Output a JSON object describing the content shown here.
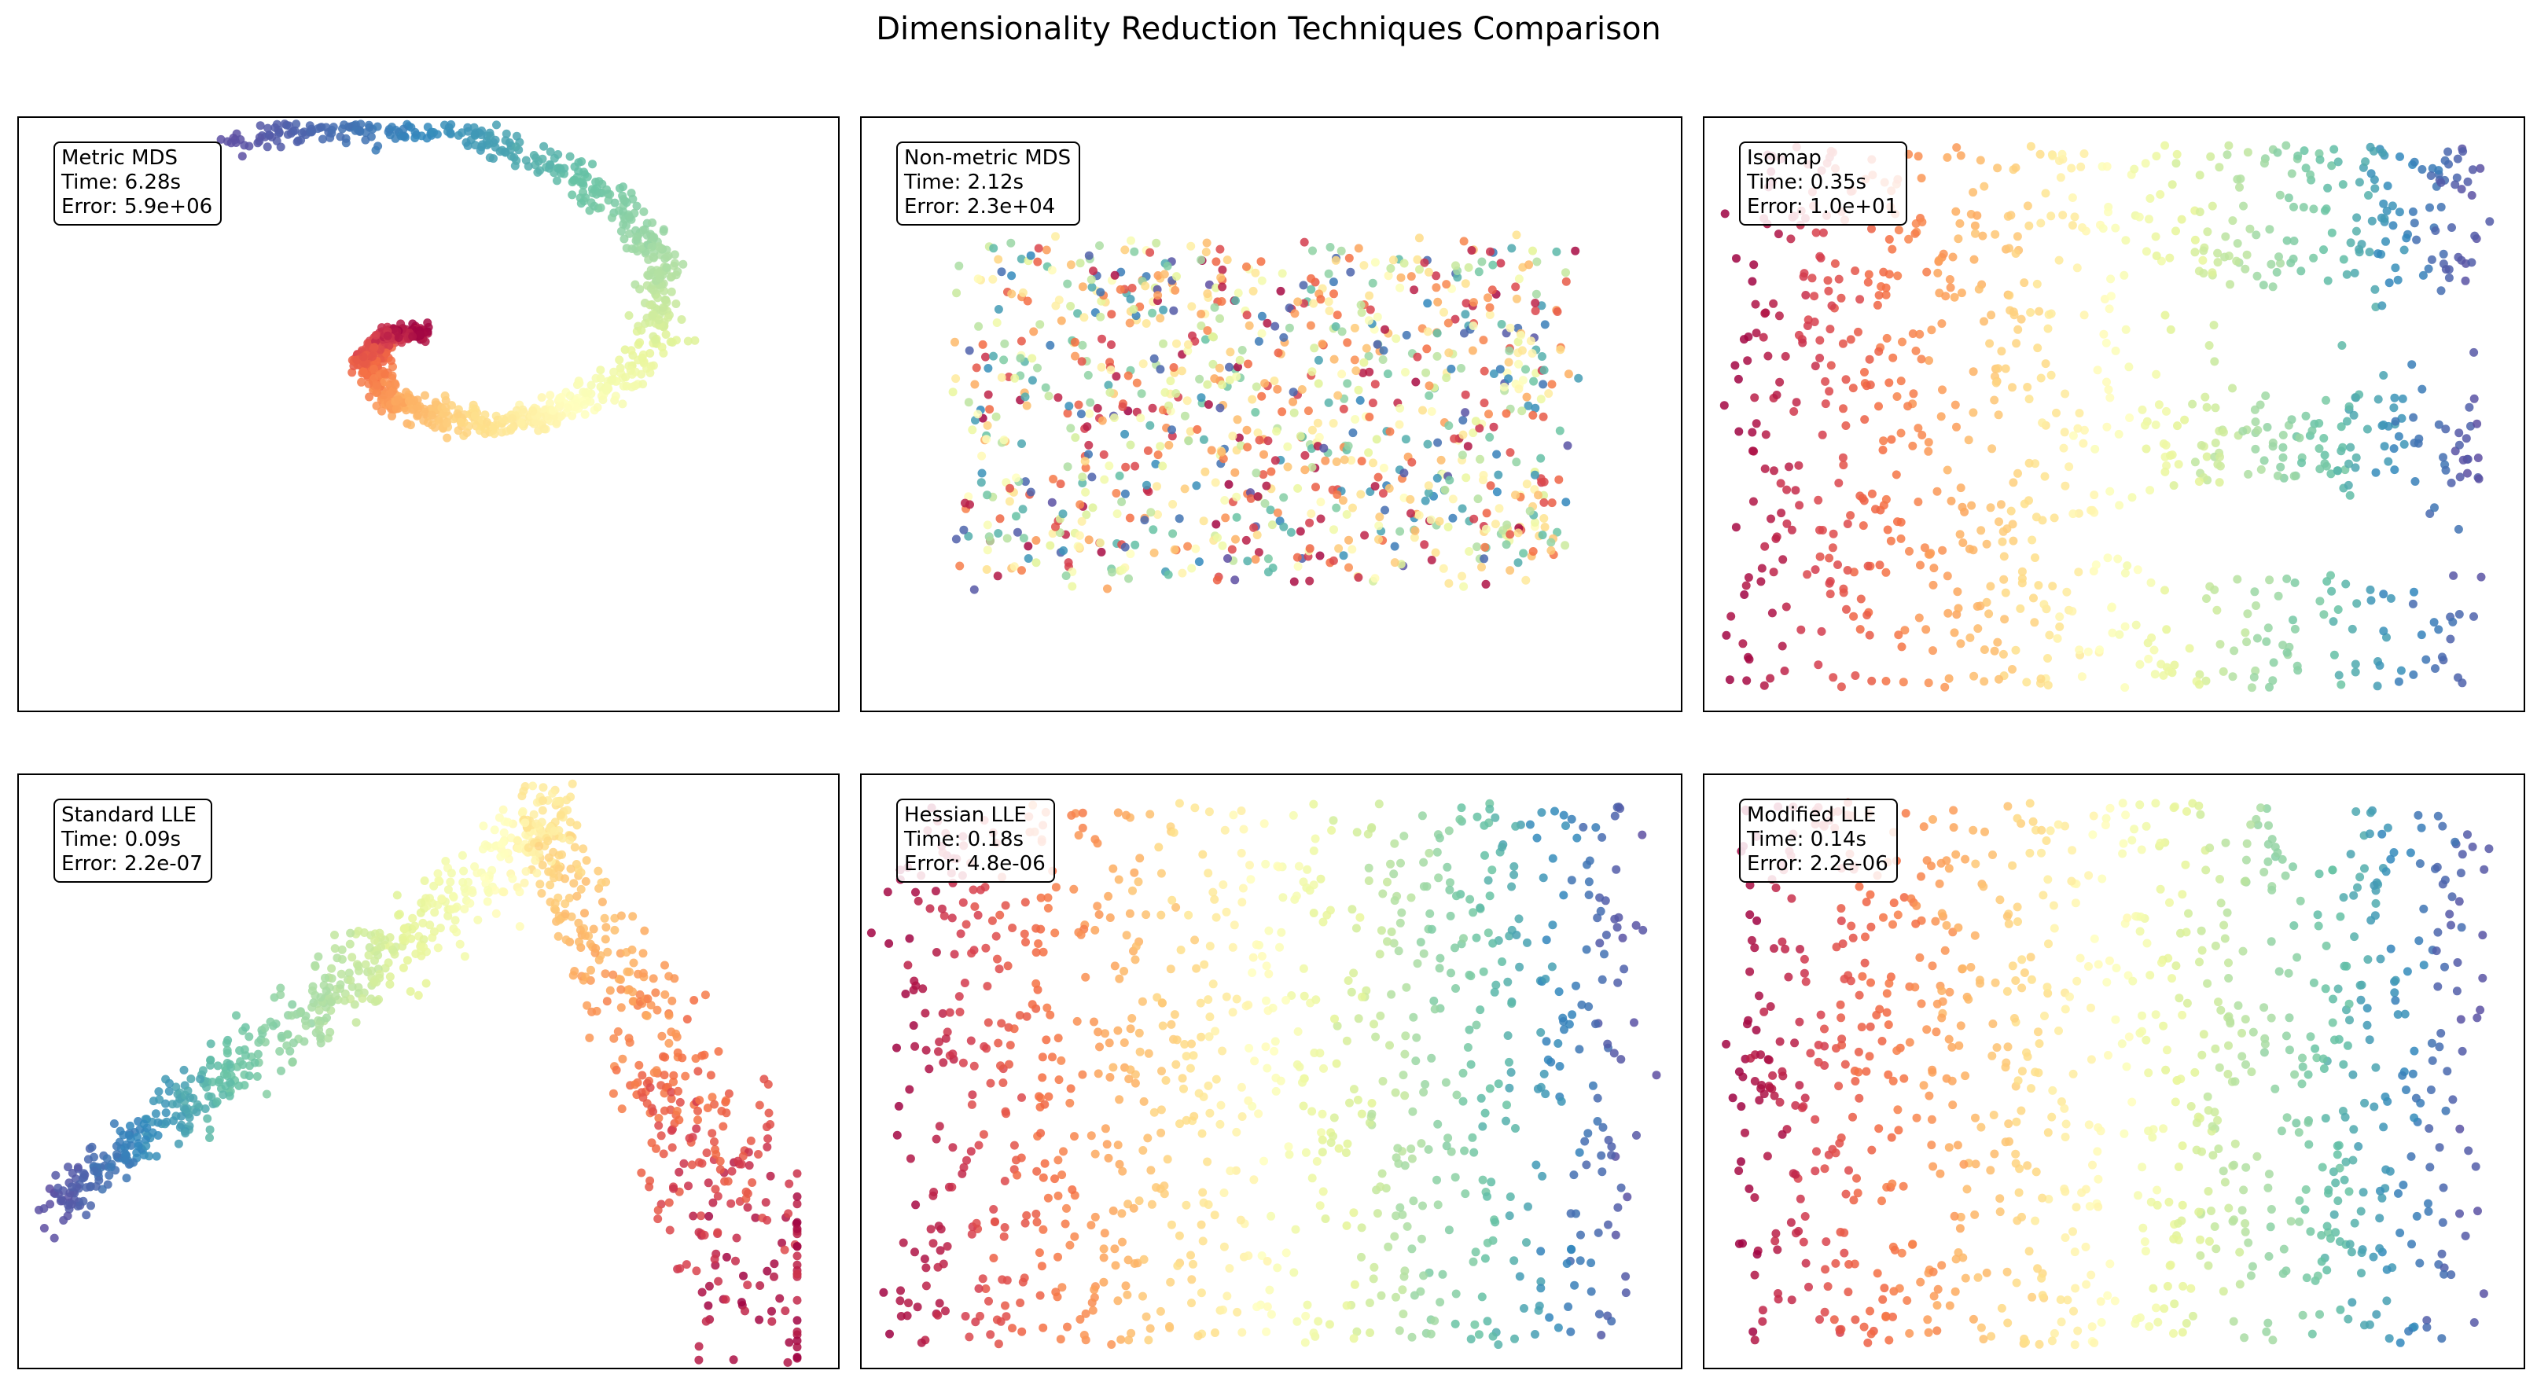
{
  "chart_data": {
    "type": "scatter",
    "title": "Dimensionality Reduction Techniques Comparison",
    "colormap": "Spectral",
    "colormap_stops": [
      "#9e0142",
      "#d53e4f",
      "#f46d43",
      "#fdae61",
      "#fee08b",
      "#ffffbf",
      "#e6f598",
      "#abdda4",
      "#66c2a5",
      "#3288bd",
      "#5e4fa2"
    ],
    "point_count_per_panel": 1000,
    "axes": "hidden",
    "grid": false,
    "panels": [
      {
        "method": "Metric MDS",
        "time": "Time: 6.28s",
        "error": "Error: 5.9e+06",
        "shape": "spiral"
      },
      {
        "method": "Non-metric MDS",
        "time": "Time: 2.12s",
        "error": "Error: 2.3e+04",
        "shape": "random"
      },
      {
        "method": "Isomap",
        "time": "Time: 0.35s",
        "error": "Error: 1.0e+01",
        "shape": "rect"
      },
      {
        "method": "Standard LLE",
        "time": "Time: 0.09s",
        "error": "Error: 2.2e-07",
        "shape": "arch"
      },
      {
        "method": "Hessian LLE",
        "time": "Time: 0.18s",
        "error": "Error: 4.8e-06",
        "shape": "rect"
      },
      {
        "method": "Modified LLE",
        "time": "Time: 0.14s",
        "error": "Error: 2.2e-06",
        "shape": "rect"
      }
    ]
  }
}
